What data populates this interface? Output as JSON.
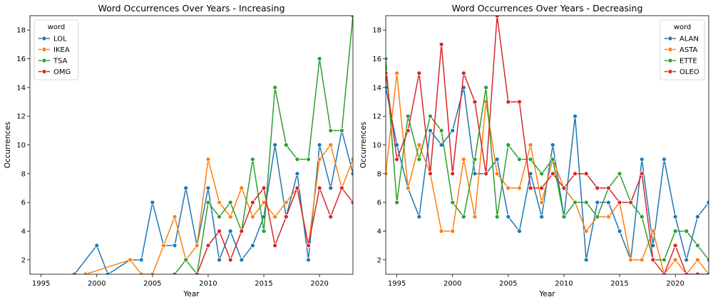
{
  "chart_data": [
    {
      "type": "line",
      "title": "Word Occurrences Over Years - Increasing",
      "xlabel": "Year",
      "ylabel": "Occurrences",
      "xlim": [
        1994,
        2023
      ],
      "ylim": [
        1,
        19
      ],
      "xticks": [
        1995,
        2000,
        2005,
        2010,
        2015,
        2020
      ],
      "yticks": [
        2,
        4,
        6,
        8,
        10,
        12,
        14,
        16,
        18
      ],
      "grid": false,
      "legend": {
        "title": "word",
        "placement": "top-left"
      },
      "series": [
        {
          "name": "LOL",
          "color": "#1f77b4",
          "points": [
            [
              1998,
              1
            ],
            [
              2000,
              3
            ],
            [
              2001,
              1
            ],
            [
              2003,
              2
            ],
            [
              2004,
              2
            ],
            [
              2005,
              6
            ],
            [
              2006,
              3
            ],
            [
              2007,
              3
            ],
            [
              2008,
              7
            ],
            [
              2009,
              3
            ],
            [
              2010,
              7
            ],
            [
              2011,
              2
            ],
            [
              2012,
              4
            ],
            [
              2013,
              2
            ],
            [
              2014,
              3
            ],
            [
              2015,
              5
            ],
            [
              2016,
              10
            ],
            [
              2017,
              5
            ],
            [
              2018,
              8
            ],
            [
              2019,
              2
            ],
            [
              2020,
              10
            ],
            [
              2021,
              7
            ],
            [
              2022,
              11
            ],
            [
              2023,
              8
            ]
          ]
        },
        {
          "name": "IKEA",
          "color": "#ff7f0e",
          "points": [
            [
              1999,
              1
            ],
            [
              2003,
              2
            ],
            [
              2004,
              1
            ],
            [
              2005,
              1
            ],
            [
              2006,
              3
            ],
            [
              2007,
              5
            ],
            [
              2008,
              2
            ],
            [
              2009,
              3
            ],
            [
              2010,
              9
            ],
            [
              2011,
              6
            ],
            [
              2012,
              5
            ],
            [
              2013,
              7
            ],
            [
              2014,
              5
            ],
            [
              2015,
              6
            ],
            [
              2016,
              5
            ],
            [
              2017,
              6
            ],
            [
              2018,
              7
            ],
            [
              2019,
              3
            ],
            [
              2020,
              9
            ],
            [
              2021,
              10
            ],
            [
              2022,
              7
            ],
            [
              2023,
              9
            ]
          ]
        },
        {
          "name": "TSA",
          "color": "#2ca02c",
          "points": [
            [
              2007,
              1
            ],
            [
              2008,
              2
            ],
            [
              2009,
              1
            ],
            [
              2010,
              6
            ],
            [
              2011,
              5
            ],
            [
              2012,
              6
            ],
            [
              2013,
              4
            ],
            [
              2014,
              9
            ],
            [
              2015,
              4
            ],
            [
              2016,
              14
            ],
            [
              2017,
              10
            ],
            [
              2018,
              9
            ],
            [
              2019,
              9
            ],
            [
              2020,
              16
            ],
            [
              2021,
              11
            ],
            [
              2022,
              11
            ],
            [
              2023,
              19
            ]
          ]
        },
        {
          "name": "OMG",
          "color": "#d62728",
          "points": [
            [
              2009,
              1
            ],
            [
              2010,
              3
            ],
            [
              2011,
              4
            ],
            [
              2012,
              2
            ],
            [
              2013,
              4
            ],
            [
              2014,
              6
            ],
            [
              2015,
              7
            ],
            [
              2016,
              3
            ],
            [
              2017,
              5
            ],
            [
              2018,
              7
            ],
            [
              2019,
              3
            ],
            [
              2020,
              7
            ],
            [
              2021,
              5
            ],
            [
              2022,
              7
            ],
            [
              2023,
              6
            ]
          ]
        }
      ]
    },
    {
      "type": "line",
      "title": "Word Occurrences Over Years - Decreasing",
      "xlabel": "Year",
      "ylabel": "Occurrences",
      "xlim": [
        1994,
        2023
      ],
      "ylim": [
        1,
        19
      ],
      "xticks": [
        1995,
        2000,
        2005,
        2010,
        2015,
        2020
      ],
      "yticks": [
        2,
        4,
        6,
        8,
        10,
        12,
        14,
        16,
        18
      ],
      "grid": false,
      "legend": {
        "title": "word",
        "placement": "top-right"
      },
      "series": [
        {
          "name": "ALAN",
          "color": "#1f77b4",
          "points": [
            [
              1994,
              14
            ],
            [
              1995,
              10
            ],
            [
              1996,
              7
            ],
            [
              1997,
              5
            ],
            [
              1998,
              11
            ],
            [
              1999,
              10
            ],
            [
              2000,
              11
            ],
            [
              2001,
              14
            ],
            [
              2002,
              8
            ],
            [
              2003,
              8
            ],
            [
              2004,
              9
            ],
            [
              2005,
              5
            ],
            [
              2006,
              4
            ],
            [
              2007,
              8
            ],
            [
              2008,
              5
            ],
            [
              2009,
              10
            ],
            [
              2010,
              5
            ],
            [
              2011,
              12
            ],
            [
              2012,
              2
            ],
            [
              2013,
              6
            ],
            [
              2014,
              6
            ],
            [
              2015,
              4
            ],
            [
              2016,
              2
            ],
            [
              2017,
              9
            ],
            [
              2018,
              3
            ],
            [
              2019,
              9
            ],
            [
              2020,
              5
            ],
            [
              2021,
              2
            ],
            [
              2022,
              5
            ],
            [
              2023,
              6
            ]
          ]
        },
        {
          "name": "ASTA",
          "color": "#ff7f0e",
          "points": [
            [
              1994,
              8
            ],
            [
              1995,
              15
            ],
            [
              1996,
              7
            ],
            [
              1997,
              10
            ],
            [
              1998,
              8
            ],
            [
              1999,
              4
            ],
            [
              2000,
              4
            ],
            [
              2001,
              9
            ],
            [
              2002,
              5
            ],
            [
              2003,
              13
            ],
            [
              2004,
              8
            ],
            [
              2005,
              7
            ],
            [
              2006,
              7
            ],
            [
              2007,
              10
            ],
            [
              2008,
              6
            ],
            [
              2009,
              9
            ],
            [
              2010,
              7
            ],
            [
              2011,
              6
            ],
            [
              2012,
              4
            ],
            [
              2013,
              5
            ],
            [
              2014,
              5
            ],
            [
              2015,
              6
            ],
            [
              2016,
              2
            ],
            [
              2017,
              2
            ],
            [
              2018,
              4
            ],
            [
              2019,
              1
            ],
            [
              2020,
              2
            ],
            [
              2021,
              1
            ],
            [
              2022,
              2
            ],
            [
              2023,
              1
            ]
          ]
        },
        {
          "name": "ETTE",
          "color": "#2ca02c",
          "points": [
            [
              1994,
              16
            ],
            [
              1995,
              6
            ],
            [
              1996,
              12
            ],
            [
              1997,
              9
            ],
            [
              1998,
              12
            ],
            [
              1999,
              11
            ],
            [
              2000,
              6
            ],
            [
              2001,
              5
            ],
            [
              2002,
              9
            ],
            [
              2003,
              14
            ],
            [
              2004,
              5
            ],
            [
              2005,
              10
            ],
            [
              2006,
              9
            ],
            [
              2007,
              9
            ],
            [
              2008,
              8
            ],
            [
              2009,
              9
            ],
            [
              2010,
              5
            ],
            [
              2011,
              6
            ],
            [
              2012,
              6
            ],
            [
              2013,
              5
            ],
            [
              2014,
              7
            ],
            [
              2015,
              8
            ],
            [
              2016,
              6
            ],
            [
              2017,
              5
            ],
            [
              2018,
              2
            ],
            [
              2019,
              2
            ],
            [
              2020,
              4
            ],
            [
              2021,
              4
            ],
            [
              2022,
              3
            ],
            [
              2023,
              2
            ]
          ]
        },
        {
          "name": "OLEO",
          "color": "#d62728",
          "points": [
            [
              1994,
              15
            ],
            [
              1995,
              9
            ],
            [
              1996,
              11
            ],
            [
              1997,
              15
            ],
            [
              1998,
              8
            ],
            [
              1999,
              17
            ],
            [
              2000,
              8
            ],
            [
              2001,
              15
            ],
            [
              2002,
              13
            ],
            [
              2003,
              8
            ],
            [
              2004,
              19
            ],
            [
              2005,
              13
            ],
            [
              2006,
              13
            ],
            [
              2007,
              7
            ],
            [
              2008,
              7
            ],
            [
              2009,
              8
            ],
            [
              2010,
              7
            ],
            [
              2011,
              8
            ],
            [
              2012,
              8
            ],
            [
              2013,
              7
            ],
            [
              2014,
              7
            ],
            [
              2015,
              6
            ],
            [
              2016,
              6
            ],
            [
              2017,
              8
            ],
            [
              2018,
              2
            ],
            [
              2019,
              1
            ],
            [
              2020,
              3
            ],
            [
              2021,
              1
            ],
            [
              2022,
              1
            ],
            [
              2023,
              1
            ]
          ]
        }
      ]
    }
  ]
}
